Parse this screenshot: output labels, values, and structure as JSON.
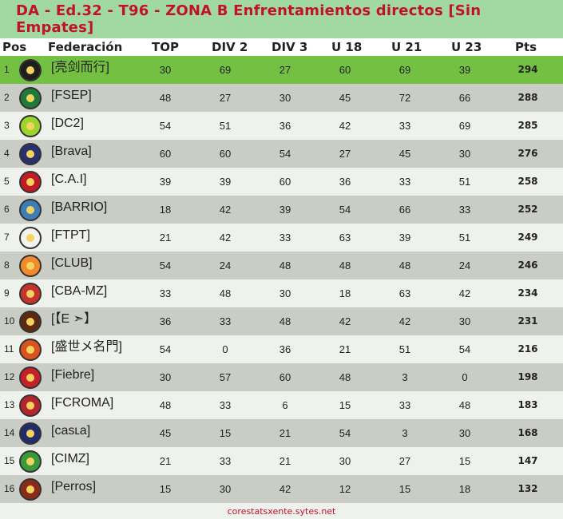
{
  "title": "DA - Ed.32 - T96 - ZONA B Enfrentamientos directos [Sin Empates]",
  "columns": {
    "pos": "Pos",
    "fed": "Federación",
    "top": "TOP",
    "div2": "DIV 2",
    "div3": "DIV 3",
    "u18": "U 18",
    "u21": "U 21",
    "u23": "U 23",
    "pts": "Pts"
  },
  "rows": [
    {
      "pos": "1",
      "fed": "[亮剑而行]",
      "top": "30",
      "div2": "69",
      "div3": "27",
      "u18": "60",
      "u21": "69",
      "u23": "39",
      "pts": "294",
      "logo": "phoenix-crest-icon",
      "logo_color": "#1e1e1e"
    },
    {
      "pos": "2",
      "fed": "[FSEP]",
      "top": "48",
      "div2": "27",
      "div3": "30",
      "u18": "45",
      "u21": "72",
      "u23": "66",
      "pts": "288",
      "logo": "palm-crest-icon",
      "logo_color": "#1f7a3a"
    },
    {
      "pos": "3",
      "fed": "[DC2]",
      "top": "54",
      "div2": "51",
      "div3": "36",
      "u18": "42",
      "u21": "33",
      "u23": "69",
      "pts": "285",
      "logo": "dc-shield-icon",
      "logo_color": "#9bd42b"
    },
    {
      "pos": "4",
      "fed": "[Brava]",
      "top": "60",
      "div2": "60",
      "div3": "54",
      "u18": "27",
      "u21": "45",
      "u23": "30",
      "pts": "276",
      "logo": "brava-shield-icon",
      "logo_color": "#2a2f6e"
    },
    {
      "pos": "5",
      "fed": "[C.A.I]",
      "top": "39",
      "div2": "39",
      "div3": "60",
      "u18": "36",
      "u21": "33",
      "u23": "51",
      "pts": "258",
      "logo": "cai-crest-icon",
      "logo_color": "#c01b24"
    },
    {
      "pos": "6",
      "fed": "[BARRIO]",
      "top": "18",
      "div2": "42",
      "div3": "39",
      "u18": "54",
      "u21": "66",
      "u23": "33",
      "pts": "252",
      "logo": "barrio-shield-icon",
      "logo_color": "#3c7fb8"
    },
    {
      "pos": "7",
      "fed": "[FTPT]",
      "top": "21",
      "div2": "42",
      "div3": "33",
      "u18": "63",
      "u21": "39",
      "u23": "51",
      "pts": "249",
      "logo": "anchor-crest-icon",
      "logo_color": "#f2f2f2"
    },
    {
      "pos": "8",
      "fed": "[CLUB]",
      "top": "54",
      "div2": "24",
      "div3": "48",
      "u18": "48",
      "u21": "48",
      "u23": "24",
      "pts": "246",
      "logo": "ball-crest-icon",
      "logo_color": "#f08a2a"
    },
    {
      "pos": "9",
      "fed": "[CBA-MZ]",
      "top": "33",
      "div2": "48",
      "div3": "30",
      "u18": "18",
      "u21": "63",
      "u23": "42",
      "pts": "234",
      "logo": "house-crest-icon",
      "logo_color": "#c7332c"
    },
    {
      "pos": "10",
      "fed": "[【E ➣】",
      "top": "36",
      "div2": "33",
      "div3": "48",
      "u18": "42",
      "u21": "42",
      "u23": "30",
      "pts": "231",
      "logo": "e-crest-icon",
      "logo_color": "#5a2a12"
    },
    {
      "pos": "11",
      "fed": "[盛世メ名門]",
      "top": "54",
      "div2": "0",
      "div3": "36",
      "u18": "21",
      "u21": "51",
      "u23": "54",
      "pts": "216",
      "logo": "dragon-crest-icon",
      "logo_color": "#d9531e"
    },
    {
      "pos": "12",
      "fed": "[Fiebre]",
      "top": "30",
      "div2": "57",
      "div3": "60",
      "u18": "48",
      "u21": "3",
      "u23": "0",
      "pts": "198",
      "logo": "fiebre-crest-icon",
      "logo_color": "#c8202a"
    },
    {
      "pos": "13",
      "fed": "[FCROMA]",
      "top": "48",
      "div2": "33",
      "div3": "6",
      "u18": "15",
      "u21": "33",
      "u23": "48",
      "pts": "183",
      "logo": "roma-shield-icon",
      "logo_color": "#b3262c"
    },
    {
      "pos": "14",
      "fed": "[casʟa]",
      "top": "45",
      "div2": "15",
      "div3": "21",
      "u18": "54",
      "u21": "3",
      "u23": "30",
      "pts": "168",
      "logo": "casla-crest-icon",
      "logo_color": "#1f2d6b"
    },
    {
      "pos": "15",
      "fed": "[CIMZ]",
      "top": "21",
      "div2": "33",
      "div3": "21",
      "u18": "30",
      "u21": "27",
      "u23": "15",
      "pts": "147",
      "logo": "cimz-crest-icon",
      "logo_color": "#3a9a3a"
    },
    {
      "pos": "16",
      "fed": "[Perros]",
      "top": "15",
      "div2": "30",
      "div3": "42",
      "u18": "12",
      "u21": "15",
      "u23": "18",
      "pts": "132",
      "logo": "dog-crest-icon",
      "logo_color": "#8a2a1a"
    }
  ],
  "footer": "corestatsxente.sytes.net",
  "colors": {
    "title_bg": "#a2d9a2",
    "title_text": "#c0122a",
    "row_first": "#74c043",
    "row_odd": "#eef1ec",
    "row_even": "#c9cdc6",
    "footer_text": "#c0122a"
  }
}
